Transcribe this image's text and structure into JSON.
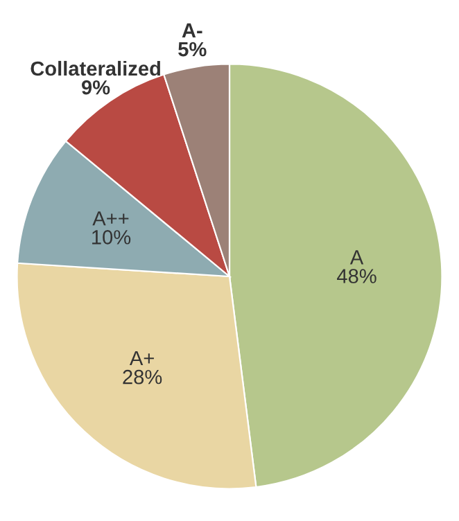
{
  "chart_data": {
    "type": "pie",
    "categories": [
      "A",
      "A+",
      "A++",
      "Collateralized",
      "A-"
    ],
    "values": [
      48,
      28,
      10,
      9,
      5
    ],
    "colors": [
      "#b6c78c",
      "#e9d6a3",
      "#8eabb1",
      "#b94a43",
      "#9c8177"
    ],
    "value_labels": [
      "48%",
      "28%",
      "10%",
      "9%",
      "5%"
    ]
  }
}
